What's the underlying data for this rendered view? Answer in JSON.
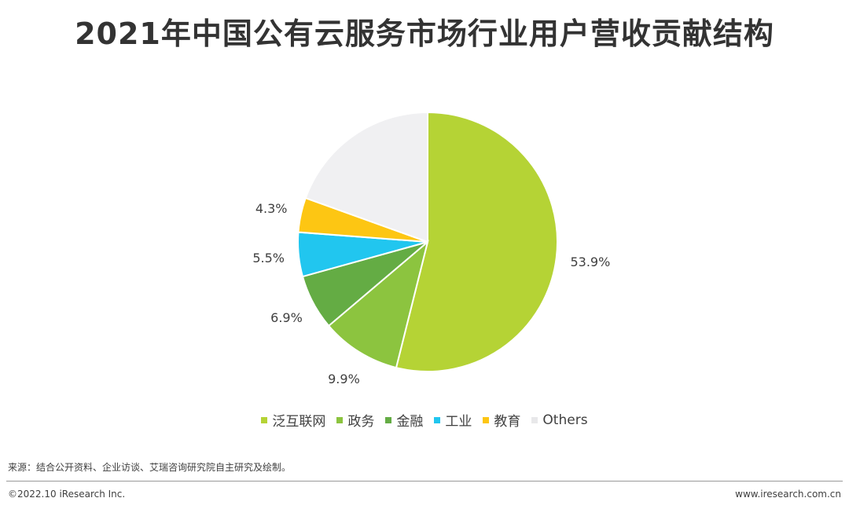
{
  "page": {
    "title": "2021年中国公有云服务市场行业用户营收贡献结构",
    "source": "来源：结合公开资料、企业访谈、艾瑞咨询研究院自主研究及绘制。",
    "copyright": "©2022.10 iResearch Inc.",
    "website": "www.iresearch.com.cn"
  },
  "chart_data": {
    "type": "pie",
    "title": "2021年中国公有云服务市场行业用户营收贡献结构",
    "legend_position": "bottom",
    "start_angle": "12 o'clock, clockwise",
    "slices": [
      {
        "name": "泛互联网",
        "value": 53.9,
        "label": "53.9%",
        "color": "#b5d335"
      },
      {
        "name": "政务",
        "value": 9.9,
        "label": "9.9%",
        "color": "#8cc43f"
      },
      {
        "name": "金融",
        "value": 6.9,
        "label": "6.9%",
        "color": "#64ac44"
      },
      {
        "name": "工业",
        "value": 5.5,
        "label": "5.5%",
        "color": "#21c6ef"
      },
      {
        "name": "教育",
        "value": 4.3,
        "label": "4.3%",
        "color": "#fdc613"
      },
      {
        "name": "Others",
        "value": 19.5,
        "label": "",
        "color": "#f0f0f2"
      }
    ]
  }
}
